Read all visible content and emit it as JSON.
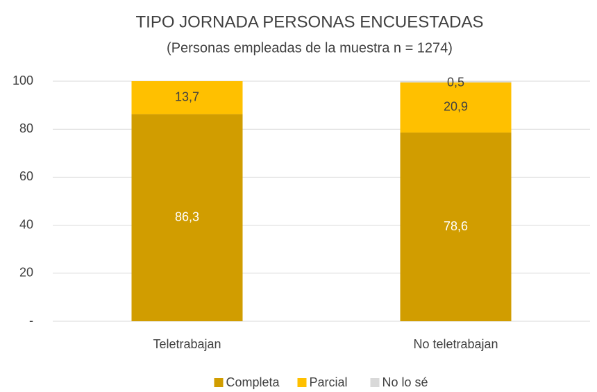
{
  "chart_data": {
    "type": "stacked_bar",
    "title": "TIPO JORNADA PERSONAS ENCUESTADAS",
    "subtitle": "(Personas empleadas de la muestra n = 1274)",
    "categories": [
      "Teletrabajan",
      "No teletrabajan"
    ],
    "series": [
      {
        "name": "Completa",
        "color": "#d19d00",
        "values": [
          86.3,
          78.6
        ],
        "value_labels": [
          "86,3",
          "78,6"
        ]
      },
      {
        "name": "Parcial",
        "color": "#ffc000",
        "values": [
          13.7,
          20.9
        ],
        "value_labels": [
          "13,7",
          "20,9"
        ]
      },
      {
        "name": "No lo sé",
        "color": "#d9d9d9",
        "values": [
          null,
          0.5
        ],
        "value_labels": [
          null,
          "0,5"
        ]
      }
    ],
    "ylim": [
      0,
      100
    ],
    "yticks": [
      {
        "value": 0,
        "label": "-"
      },
      20,
      40,
      60,
      80,
      100
    ],
    "grid": true,
    "legend": "bottom"
  }
}
